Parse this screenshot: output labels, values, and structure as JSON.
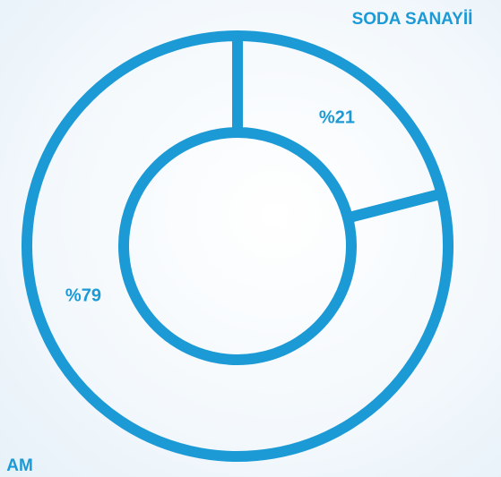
{
  "chart_data": {
    "type": "donut",
    "categories": [
      "SODA SANAYİİ",
      "AM"
    ],
    "values": [
      21,
      79
    ],
    "value_labels": [
      "%21",
      "%79"
    ],
    "color": "#1b9ad6"
  }
}
